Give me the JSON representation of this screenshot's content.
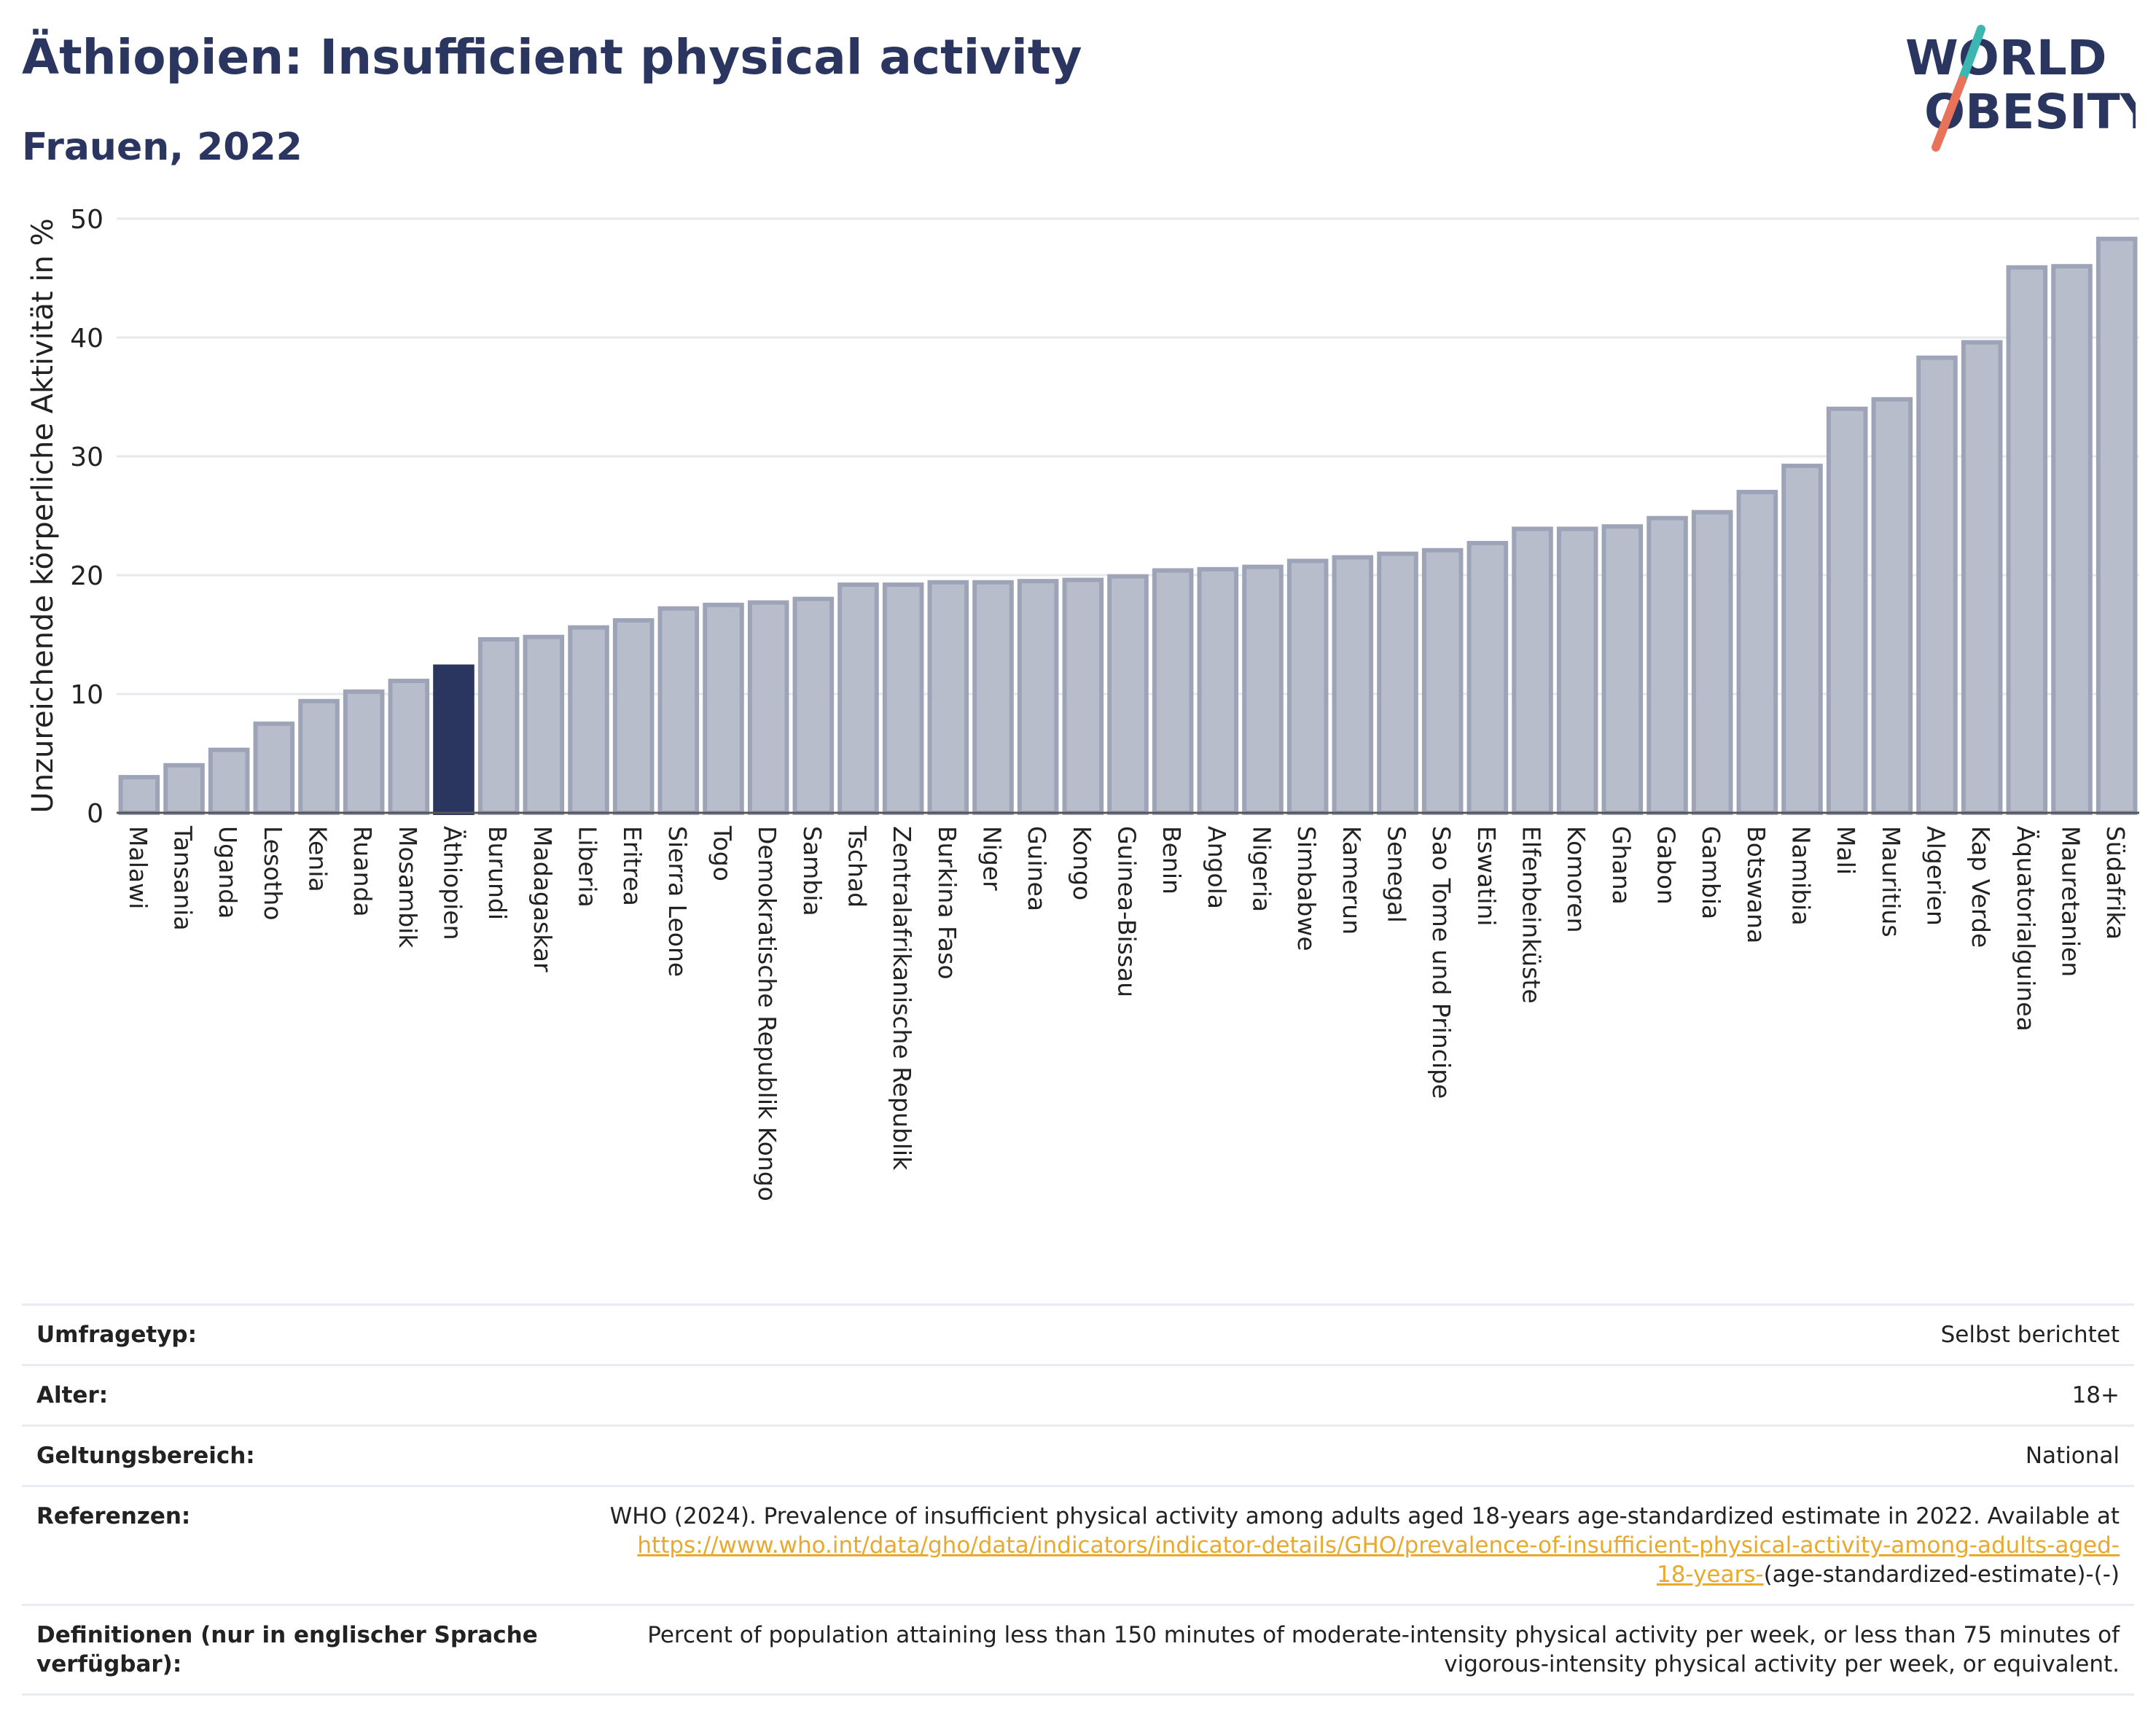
{
  "header": {
    "title": "Äthiopien: Insufficient physical activity",
    "subtitle": "Frauen, 2022"
  },
  "logo": {
    "line1": "WORLD",
    "line2": "OBESITY"
  },
  "chart_data": {
    "type": "bar",
    "ylabel": "Unzureichende körperliche Aktivität in %",
    "xlabel": "",
    "ylim": [
      0,
      50
    ],
    "yticks": [
      0,
      10,
      20,
      30,
      40,
      50
    ],
    "grid": true,
    "highlight": "Äthiopien",
    "colors": {
      "bar": "#b8bdcc",
      "bar_edge": "#9ea4b8",
      "highlight": "#2b3660",
      "grid": "#e6e8ee"
    },
    "categories": [
      "Malawi",
      "Tansania",
      "Uganda",
      "Lesotho",
      "Kenia",
      "Ruanda",
      "Mosambik",
      "Äthiopien",
      "Burundi",
      "Madagaskar",
      "Liberia",
      "Eritrea",
      "Sierra Leone",
      "Togo",
      "Demokratische Republik Kongo",
      "Sambia",
      "Tschad",
      "Zentralafrikanische Republik",
      "Burkina Faso",
      "Niger",
      "Guinea",
      "Kongo",
      "Guinea-Bissau",
      "Benin",
      "Angola",
      "Nigeria",
      "Simbabwe",
      "Kamerun",
      "Senegal",
      "Sao Tome und Principe",
      "Eswatini",
      "Elfenbeinküste",
      "Komoren",
      "Ghana",
      "Gabon",
      "Gambia",
      "Botswana",
      "Namibia",
      "Mali",
      "Mauritius",
      "Algerien",
      "Kap Verde",
      "Äquatorialguinea",
      "Mauretanien",
      "Südafrika"
    ],
    "values": [
      3.0,
      4.0,
      5.3,
      7.5,
      9.4,
      10.2,
      11.1,
      12.3,
      14.6,
      14.8,
      15.6,
      16.2,
      17.2,
      17.5,
      17.7,
      18.0,
      19.2,
      19.2,
      19.4,
      19.4,
      19.5,
      19.6,
      19.9,
      20.4,
      20.5,
      20.7,
      21.2,
      21.5,
      21.8,
      22.1,
      22.7,
      23.9,
      23.9,
      24.1,
      24.8,
      25.3,
      27.0,
      29.2,
      34.0,
      34.8,
      38.3,
      39.6,
      45.9,
      46.0,
      48.3
    ]
  },
  "info": {
    "rows": [
      {
        "label": "Umfragetyp:",
        "value": "Selbst berichtet"
      },
      {
        "label": "Alter:",
        "value": "18+"
      },
      {
        "label": "Geltungsbereich:",
        "value": "National"
      }
    ],
    "reference": {
      "label": "Referenzen:",
      "text": "WHO (2024). Prevalence of insufficient physical activity among adults aged 18-years age-standardized estimate in 2022. Available at",
      "link_part1": "https://www.who.int/data/gho/data/indicators/indicator-details/GHO/prevalence-of-insufficient-physical-activity-among-adults-aged-",
      "link_part2": "18-years-",
      "suffix": "(age-standardized-estimate)-(-)"
    },
    "definition": {
      "label": "Definitionen (nur in englischer Sprache verfügbar):",
      "text": "Percent of population attaining less than 150 minutes of moderate-intensity physical activity per week, or less than 75 minutes of vigorous-intensity physical activity per week, or equivalent."
    }
  }
}
